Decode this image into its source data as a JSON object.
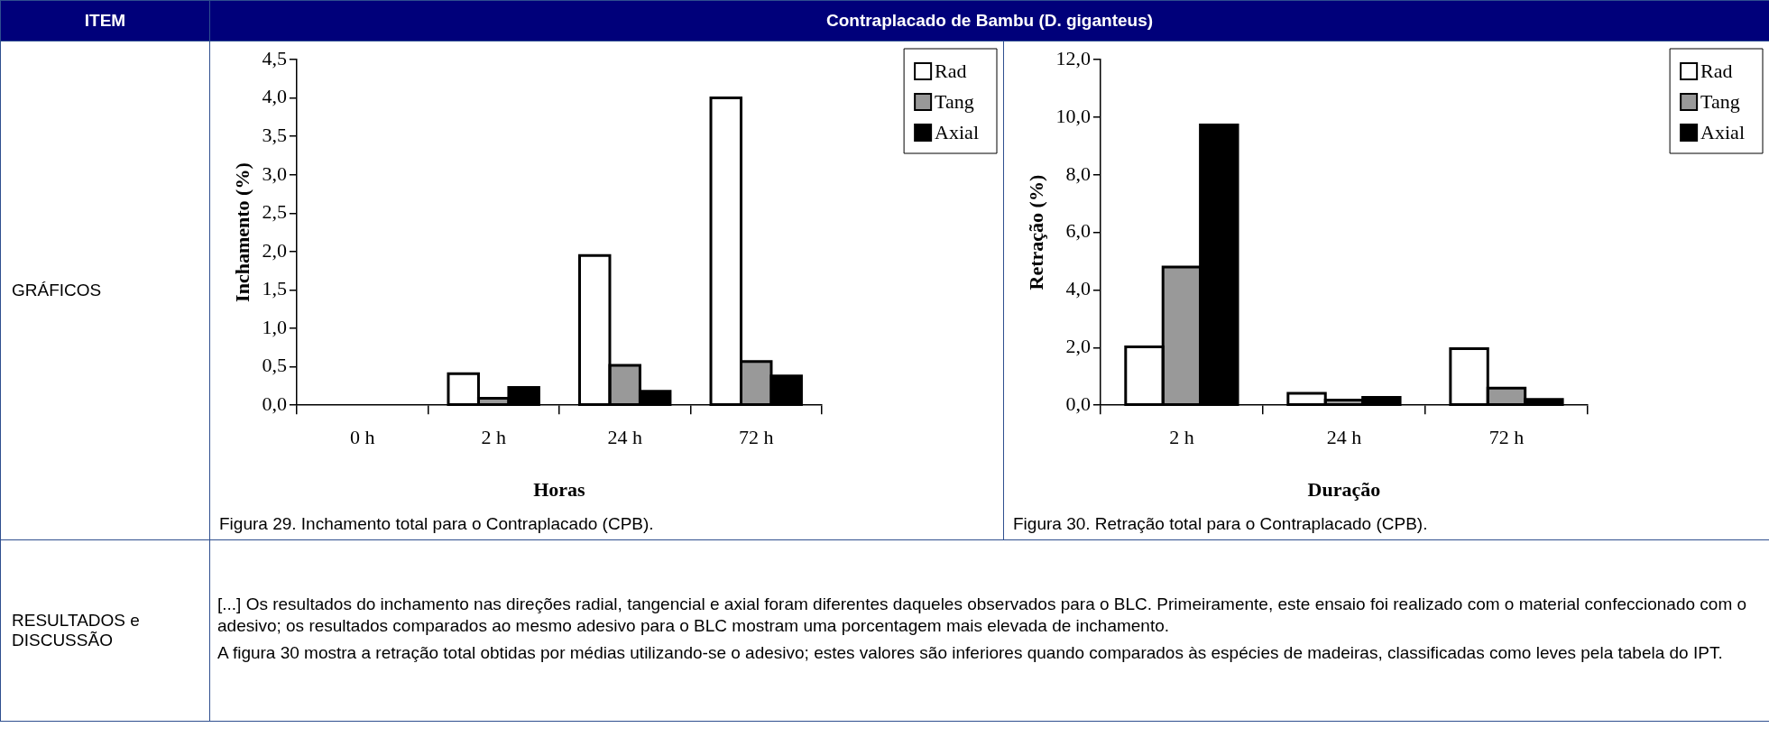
{
  "chart_data": [
    {
      "type": "bar",
      "categories": [
        "0 h",
        "2 h",
        "24 h",
        "72 h"
      ],
      "xlabel": "Horas",
      "ylabel": "Inchamento (%)",
      "series": [
        {
          "name": "Rad",
          "color": "#ffffff",
          "values": [
            0,
            0.41,
            1.95,
            4.0
          ]
        },
        {
          "name": "Tang",
          "color": "#999999",
          "values": [
            0,
            0.09,
            0.52,
            0.57
          ]
        },
        {
          "name": "Axial",
          "color": "#000000",
          "values": [
            0,
            0.23,
            0.18,
            0.38
          ]
        }
      ],
      "ylim": [
        0,
        4.5
      ],
      "yticks": [
        {
          "value": 0,
          "label": "0,0"
        },
        {
          "value": 0.5,
          "label": "0,5"
        },
        {
          "value": 1,
          "label": "1,0"
        },
        {
          "value": 1.5,
          "label": "1,5"
        },
        {
          "value": 2,
          "label": "2,0"
        },
        {
          "value": 2.5,
          "label": "2,5"
        },
        {
          "value": 3,
          "label": "3,0"
        },
        {
          "value": 3.5,
          "label": "3,5"
        },
        {
          "value": 4,
          "label": "4,0"
        },
        {
          "value": 4.5,
          "label": "4,5"
        }
      ],
      "grid": false,
      "legend": "top right",
      "annotations": [
        "Figura 29. Inchamento total para o Contraplacado (CPB)."
      ]
    },
    {
      "type": "bar",
      "categories": [
        "2 h",
        "24 h",
        "72 h"
      ],
      "xlabel": "Duração",
      "ylabel": "Retração (%)",
      "series": [
        {
          "name": "Rad",
          "color": "#ffffff",
          "values": [
            2.03,
            0.41,
            1.96
          ]
        },
        {
          "name": "Tang",
          "color": "#999999",
          "values": [
            4.8,
            0.18,
            0.59
          ]
        },
        {
          "name": "Axial",
          "color": "#000000",
          "values": [
            9.73,
            0.27,
            0.2
          ]
        }
      ],
      "ylim": [
        0,
        12
      ],
      "yticks": [
        {
          "value": 0,
          "label": "0,0"
        },
        {
          "value": 2,
          "label": "2,0"
        },
        {
          "value": 4,
          "label": "4,0"
        },
        {
          "value": 6,
          "label": "6,0"
        },
        {
          "value": 8,
          "label": "8,0"
        },
        {
          "value": 10,
          "label": "10,0"
        },
        {
          "value": 12,
          "label": "12,0"
        }
      ],
      "grid": false,
      "legend": "top right",
      "annotations": [
        "Figura 30. Retração total para o Contraplacado (CPB)."
      ]
    },
    {
      "type": "other",
      "annotations": [
        "ITEM",
        "Contraplacado de Bambu (D. giganteus)",
        "GRÁFICOS",
        "RESULTADOS e DISCUSSÃO",
        "[...] Os resultados do inchamento nas direções radial, tangencial e axial foram diferentes daqueles observados para o BLC. Primeiramente, este ensaio foi realizado com o material confeccionado com o adesivo; os resultados comparados ao mesmo adesivo para o BLC mostram uma porcentagem mais elevada de inchamento.",
        "A figura 30 mostra a retração total obtidas por médias utilizando-se o adesivo; estes valores são inferiores quando comparados às espécies de madeiras, classificadas como leves pela tabela do IPT."
      ]
    }
  ]
}
